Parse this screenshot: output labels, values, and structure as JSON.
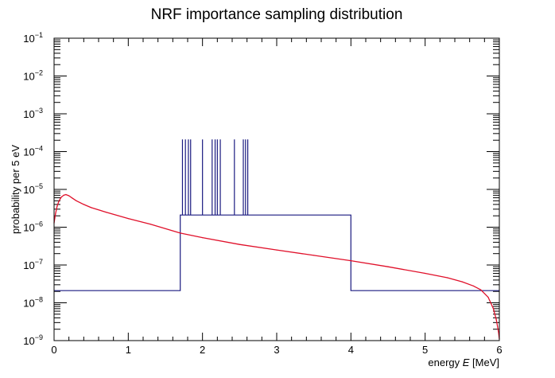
{
  "chart_data": {
    "type": "line",
    "title": "NRF importance sampling distribution",
    "xlabel_prefix": "energy ",
    "xlabel_var": "E",
    "xlabel_unit": " [MeV]",
    "ylabel": "probability per 5 eV",
    "xlim": [
      0,
      6
    ],
    "ylim": [
      1e-09,
      0.1
    ],
    "yscale": "log",
    "grid": false,
    "x_ticks": [
      {
        "value": 0,
        "label": "0"
      },
      {
        "value": 1,
        "label": "1"
      },
      {
        "value": 2,
        "label": "2"
      },
      {
        "value": 3,
        "label": "3"
      },
      {
        "value": 4,
        "label": "4"
      },
      {
        "value": 5,
        "label": "5"
      },
      {
        "value": 6,
        "label": "6"
      }
    ],
    "y_ticks": [
      {
        "value": 1e-09,
        "base": "10",
        "exp": "−9"
      },
      {
        "value": 1e-08,
        "base": "10",
        "exp": "−8"
      },
      {
        "value": 1e-07,
        "base": "10",
        "exp": "−7"
      },
      {
        "value": 1e-06,
        "base": "10",
        "exp": "−6"
      },
      {
        "value": 1e-05,
        "base": "10",
        "exp": "−5"
      },
      {
        "value": 0.0001,
        "base": "10",
        "exp": "−4"
      },
      {
        "value": 0.001,
        "base": "10",
        "exp": "−3"
      },
      {
        "value": 0.01,
        "base": "10",
        "exp": "−2"
      },
      {
        "value": 0.1,
        "base": "10",
        "exp": "−1"
      }
    ],
    "series": [
      {
        "color": "#1a1a80",
        "kind": "step",
        "baseline": 2.1e-08,
        "plateau": {
          "x_start": 1.7,
          "x_end": 4.0,
          "value": 2.1e-06
        },
        "spikes_value": 0.00021,
        "spikes_x": [
          1.73,
          1.77,
          1.81,
          1.84,
          2.0,
          2.13,
          2.17,
          2.2,
          2.24,
          2.43,
          2.55,
          2.58,
          2.61
        ]
      },
      {
        "color": "#e0102a",
        "kind": "line",
        "x": [
          0.0,
          0.02,
          0.04,
          0.06,
          0.08,
          0.1,
          0.13,
          0.16,
          0.2,
          0.25,
          0.3,
          0.4,
          0.5,
          0.7,
          1.0,
          1.3,
          1.7,
          2.0,
          2.5,
          3.0,
          3.5,
          4.0,
          4.5,
          5.0,
          5.3,
          5.5,
          5.65,
          5.75,
          5.85,
          5.92,
          5.96,
          5.99,
          6.0
        ],
        "y": [
          1.3e-06,
          2.3e-06,
          3.5e-06,
          4.6e-06,
          5.5e-06,
          6.3e-06,
          7e-06,
          7.3e-06,
          6.8e-06,
          5.8e-06,
          5e-06,
          4e-06,
          3.3e-06,
          2.5e-06,
          1.7e-06,
          1.2e-06,
          7e-07,
          5.3e-07,
          3.5e-07,
          2.5e-07,
          1.8e-07,
          1.3e-07,
          9e-08,
          6e-08,
          4.6e-08,
          3.6e-08,
          2.8e-08,
          2.2e-08,
          1.4e-08,
          7e-09,
          3.5e-09,
          1.6e-09,
          1.1e-09
        ]
      }
    ]
  }
}
